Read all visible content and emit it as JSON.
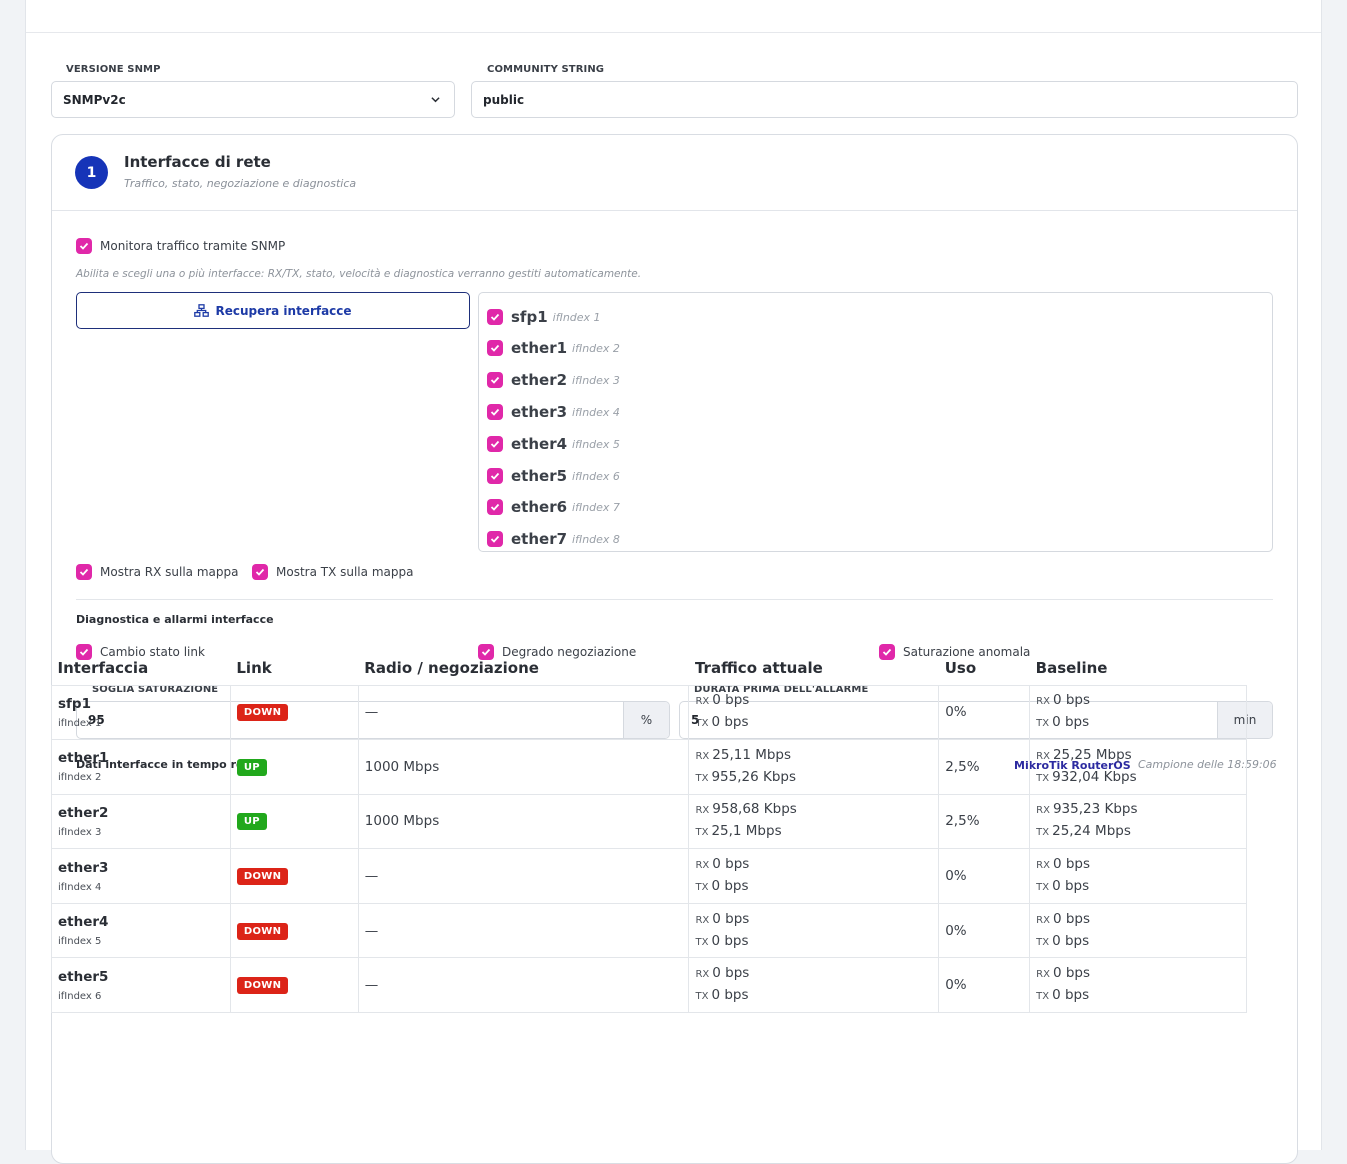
{
  "snmp": {
    "version_label": "VERSIONE SNMP",
    "version_value": "SNMPv2c",
    "community_label": "COMMUNITY STRING",
    "community_value": "public"
  },
  "section": {
    "number": "1",
    "title": "Interfacce di rete",
    "subtitle": "Traffico, stato, negoziazione e diagnostica"
  },
  "monitor": {
    "label": "Monitora traffico tramite SNMP",
    "hint": "Abilita e scegli una o più interfacce: RX/TX, stato, velocità e diagnostica verranno gestiti automaticamente.",
    "fetch_button": "Recupera interfacce"
  },
  "interfaces": [
    {
      "name": "sfp1",
      "index": "ifIndex 1"
    },
    {
      "name": "ether1",
      "index": "ifIndex 2"
    },
    {
      "name": "ether2",
      "index": "ifIndex 3"
    },
    {
      "name": "ether3",
      "index": "ifIndex 4"
    },
    {
      "name": "ether4",
      "index": "ifIndex 5"
    },
    {
      "name": "ether5",
      "index": "ifIndex 6"
    },
    {
      "name": "ether6",
      "index": "ifIndex 7"
    },
    {
      "name": "ether7",
      "index": "ifIndex 8"
    }
  ],
  "map": {
    "show_rx": "Mostra RX sulla mappa",
    "show_tx": "Mostra TX sulla mappa"
  },
  "diagnostics": {
    "title": "Diagnostica e allarmi interfacce",
    "link_change": "Cambio stato link",
    "negotiation_degrade": "Degrado negoziazione",
    "saturation": "Saturazione anomala",
    "threshold_label": "SOGLIA SATURAZIONE",
    "threshold_value": "95",
    "threshold_unit": "%",
    "duration_label": "DURATA PRIMA DELL'ALLARME",
    "duration_value": "5",
    "duration_unit": "min"
  },
  "realtime": {
    "title": "Dati interfacce in tempo reale",
    "device": "MikroTik RouterOS",
    "sample": "Campione delle 18:59:06",
    "columns": [
      "Interfaccia",
      "Link",
      "Radio / negoziazione",
      "Traffico attuale",
      "Uso",
      "Baseline"
    ],
    "rx": "RX",
    "tx": "TX",
    "rows": [
      {
        "name": "sfp1",
        "index": "ifIndex 1",
        "link": "DOWN",
        "neg": "—",
        "rx": "0 bps",
        "tx": "0 bps",
        "use": "0%",
        "brx": "0 bps",
        "btx": "0 bps"
      },
      {
        "name": "ether1",
        "index": "ifIndex 2",
        "link": "UP",
        "neg": "1000 Mbps",
        "rx": "25,11 Mbps",
        "tx": "955,26 Kbps",
        "use": "2,5%",
        "brx": "25,25 Mbps",
        "btx": "932,04 Kbps"
      },
      {
        "name": "ether2",
        "index": "ifIndex 3",
        "link": "UP",
        "neg": "1000 Mbps",
        "rx": "958,68 Kbps",
        "tx": "25,1 Mbps",
        "use": "2,5%",
        "brx": "935,23 Kbps",
        "btx": "25,24 Mbps"
      },
      {
        "name": "ether3",
        "index": "ifIndex 4",
        "link": "DOWN",
        "neg": "—",
        "rx": "0 bps",
        "tx": "0 bps",
        "use": "0%",
        "brx": "0 bps",
        "btx": "0 bps"
      },
      {
        "name": "ether4",
        "index": "ifIndex 5",
        "link": "DOWN",
        "neg": "—",
        "rx": "0 bps",
        "tx": "0 bps",
        "use": "0%",
        "brx": "0 bps",
        "btx": "0 bps"
      },
      {
        "name": "ether5",
        "index": "ifIndex 6",
        "link": "DOWN",
        "neg": "—",
        "rx": "0 bps",
        "tx": "0 bps",
        "use": "0%",
        "brx": "0 bps",
        "btx": "0 bps"
      }
    ]
  },
  "colors": {
    "accent": "#e028a9",
    "primary": "#1634b8",
    "up": "#21a81c",
    "down": "#dc2418"
  }
}
